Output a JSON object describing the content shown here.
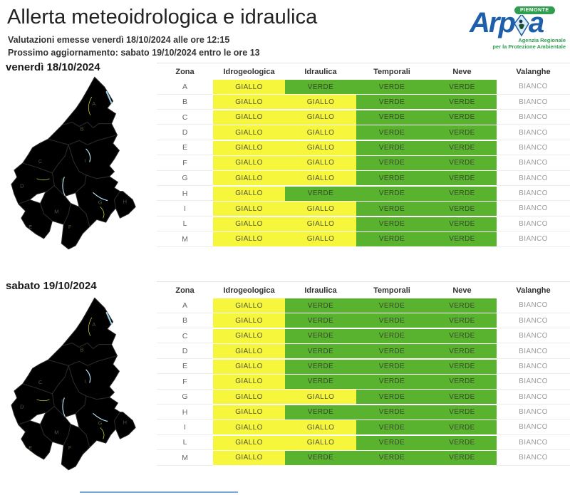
{
  "page": {
    "title": "Allerta meteoidrologica e idraulica",
    "issued_line": "Valutazioni emesse venerdì 18/10/2024 alle ore 12:15",
    "next_update_line": "Prossimo aggiornamento: sabato 19/10/2024 entro le ore 13"
  },
  "logo": {
    "name": "Arp",
    "name_end": "a",
    "region_badge": "PIEMONTE",
    "tagline_line1": "Agenzia Regionale",
    "tagline_line2": "per la Protezione Ambientale",
    "colors": {
      "blue": "#1f5fa9",
      "green": "#2f9e4e"
    }
  },
  "colors": {
    "giallo": "#f6f63d",
    "verde": "#59b32e",
    "bianco": "#ffffff"
  },
  "columns": [
    "Zona",
    "Idrogeologica",
    "Idraulica",
    "Temporali",
    "Neve",
    "Valanghe"
  ],
  "map_zones": [
    "A",
    "B",
    "C",
    "D",
    "E",
    "F",
    "G",
    "H",
    "I",
    "L",
    "M"
  ],
  "tables": [
    {
      "date_label": "venerdì 18/10/2024",
      "rows": [
        {
          "zona": "A",
          "values": [
            "GIALLO",
            "VERDE",
            "VERDE",
            "VERDE",
            "BIANCO"
          ]
        },
        {
          "zona": "B",
          "values": [
            "GIALLO",
            "GIALLO",
            "VERDE",
            "VERDE",
            "BIANCO"
          ]
        },
        {
          "zona": "C",
          "values": [
            "GIALLO",
            "GIALLO",
            "VERDE",
            "VERDE",
            "BIANCO"
          ]
        },
        {
          "zona": "D",
          "values": [
            "GIALLO",
            "GIALLO",
            "VERDE",
            "VERDE",
            "BIANCO"
          ]
        },
        {
          "zona": "E",
          "values": [
            "GIALLO",
            "GIALLO",
            "VERDE",
            "VERDE",
            "BIANCO"
          ]
        },
        {
          "zona": "F",
          "values": [
            "GIALLO",
            "GIALLO",
            "VERDE",
            "VERDE",
            "BIANCO"
          ]
        },
        {
          "zona": "G",
          "values": [
            "GIALLO",
            "GIALLO",
            "VERDE",
            "VERDE",
            "BIANCO"
          ]
        },
        {
          "zona": "H",
          "values": [
            "GIALLO",
            "VERDE",
            "VERDE",
            "VERDE",
            "BIANCO"
          ]
        },
        {
          "zona": "I",
          "values": [
            "GIALLO",
            "GIALLO",
            "VERDE",
            "VERDE",
            "BIANCO"
          ]
        },
        {
          "zona": "L",
          "values": [
            "GIALLO",
            "GIALLO",
            "VERDE",
            "VERDE",
            "BIANCO"
          ]
        },
        {
          "zona": "M",
          "values": [
            "GIALLO",
            "GIALLO",
            "VERDE",
            "VERDE",
            "BIANCO"
          ]
        }
      ]
    },
    {
      "date_label": "sabato 19/10/2024",
      "rows": [
        {
          "zona": "A",
          "values": [
            "GIALLO",
            "VERDE",
            "VERDE",
            "VERDE",
            "BIANCO"
          ]
        },
        {
          "zona": "B",
          "values": [
            "GIALLO",
            "VERDE",
            "VERDE",
            "VERDE",
            "BIANCO"
          ]
        },
        {
          "zona": "C",
          "values": [
            "GIALLO",
            "VERDE",
            "VERDE",
            "VERDE",
            "BIANCO"
          ]
        },
        {
          "zona": "D",
          "values": [
            "GIALLO",
            "VERDE",
            "VERDE",
            "VERDE",
            "BIANCO"
          ]
        },
        {
          "zona": "E",
          "values": [
            "GIALLO",
            "VERDE",
            "VERDE",
            "VERDE",
            "BIANCO"
          ]
        },
        {
          "zona": "F",
          "values": [
            "GIALLO",
            "VERDE",
            "VERDE",
            "VERDE",
            "BIANCO"
          ]
        },
        {
          "zona": "G",
          "values": [
            "GIALLO",
            "GIALLO",
            "VERDE",
            "VERDE",
            "BIANCO"
          ]
        },
        {
          "zona": "H",
          "values": [
            "GIALLO",
            "VERDE",
            "VERDE",
            "VERDE",
            "BIANCO"
          ]
        },
        {
          "zona": "I",
          "values": [
            "GIALLO",
            "GIALLO",
            "VERDE",
            "VERDE",
            "BIANCO"
          ]
        },
        {
          "zona": "L",
          "values": [
            "GIALLO",
            "GIALLO",
            "VERDE",
            "VERDE",
            "BIANCO"
          ]
        },
        {
          "zona": "M",
          "values": [
            "GIALLO",
            "VERDE",
            "VERDE",
            "VERDE",
            "BIANCO"
          ]
        }
      ]
    }
  ]
}
